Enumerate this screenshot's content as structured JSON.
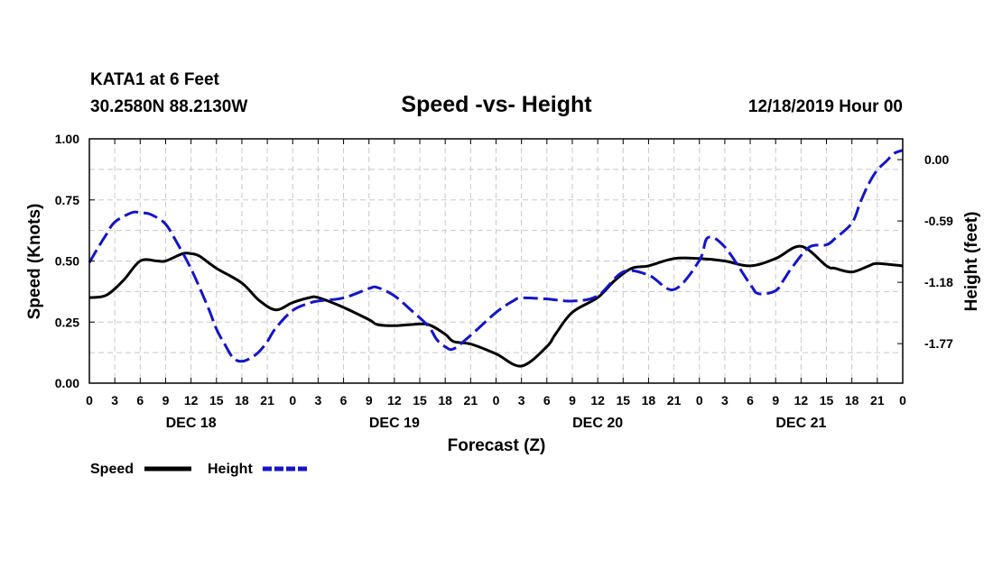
{
  "header": {
    "station": "KATA1 at 6 Feet",
    "coords": "30.2580N 88.2130W",
    "title": "Speed -vs- Height",
    "date": "12/18/2019 Hour 00"
  },
  "chart_data": {
    "type": "line",
    "title": "Speed -vs- Height",
    "xlabel": "Forecast (Z)",
    "ylabel": "Speed (Knots)",
    "y2label": "Height (feet)",
    "x_unit": "forecast hours from 12/18/2019 00Z",
    "xlim": [
      0,
      96
    ],
    "ylim": [
      0,
      1
    ],
    "y2lim": [
      -2.15,
      0.2
    ],
    "x_ticks": [
      0,
      3,
      6,
      9,
      12,
      15,
      18,
      21,
      24,
      27,
      30,
      33,
      36,
      39,
      42,
      45,
      48,
      51,
      54,
      57,
      60,
      63,
      66,
      69,
      72,
      75,
      78,
      81,
      84,
      87,
      90,
      93,
      96
    ],
    "x_tick_labels": [
      "0",
      "3",
      "6",
      "9",
      "12",
      "15",
      "18",
      "21",
      "0",
      "3",
      "6",
      "9",
      "12",
      "15",
      "18",
      "21",
      "0",
      "3",
      "6",
      "9",
      "12",
      "15",
      "18",
      "21",
      "0",
      "3",
      "6",
      "9",
      "12",
      "15",
      "18",
      "21",
      "0"
    ],
    "y_ticks": [
      0,
      0.25,
      0.5,
      0.75,
      1.0
    ],
    "y_tick_labels": [
      "0.00",
      "0.25",
      "0.50",
      "0.75",
      "1.00"
    ],
    "y2_ticks": [
      0,
      -0.59,
      -1.18,
      -1.77
    ],
    "y2_tick_labels": [
      "0.00",
      "-0.59",
      "-1.18",
      "-1.77"
    ],
    "day_labels": [
      {
        "x": 12,
        "label": "DEC 18"
      },
      {
        "x": 36,
        "label": "DEC 19"
      },
      {
        "x": 60,
        "label": "DEC 20"
      },
      {
        "x": 84,
        "label": "DEC 21"
      }
    ],
    "grid": true,
    "series": [
      {
        "name": "Speed",
        "axis": "left",
        "color": "#000000",
        "style": "solid",
        "x": [
          0,
          2,
          4,
          6,
          8,
          9,
          11,
          12,
          13,
          15,
          18,
          20,
          22,
          24,
          26,
          27,
          30,
          33,
          34,
          36,
          38,
          40,
          42,
          43,
          45,
          48,
          51,
          54,
          55,
          57,
          60,
          62,
          64,
          66,
          69,
          72,
          75,
          78,
          81,
          84,
          87,
          88,
          90,
          92,
          93,
          96
        ],
        "values": [
          0.35,
          0.36,
          0.42,
          0.5,
          0.5,
          0.5,
          0.53,
          0.53,
          0.52,
          0.47,
          0.41,
          0.34,
          0.3,
          0.33,
          0.35,
          0.35,
          0.31,
          0.26,
          0.24,
          0.235,
          0.24,
          0.24,
          0.2,
          0.17,
          0.16,
          0.12,
          0.07,
          0.15,
          0.2,
          0.29,
          0.35,
          0.42,
          0.47,
          0.48,
          0.51,
          0.51,
          0.5,
          0.48,
          0.51,
          0.56,
          0.48,
          0.47,
          0.455,
          0.48,
          0.49,
          0.48
        ]
      },
      {
        "name": "Height",
        "axis": "right",
        "color": "#1414c8",
        "style": "dashed",
        "x": [
          0,
          1,
          2,
          3,
          5,
          6,
          7,
          8,
          9,
          10,
          12,
          14,
          15,
          16,
          17,
          18,
          19,
          20,
          21,
          22,
          24,
          26,
          27,
          30,
          33,
          34,
          36,
          38,
          40,
          41,
          42,
          43,
          45,
          48,
          50,
          51,
          54,
          57,
          60,
          63,
          66,
          69,
          72,
          73,
          75,
          78,
          79,
          81,
          82,
          83,
          85,
          87,
          88,
          90,
          91,
          92,
          93,
          94,
          95,
          96
        ],
        "values": [
          -0.99,
          -0.85,
          -0.72,
          -0.6,
          -0.51,
          -0.51,
          -0.52,
          -0.56,
          -0.62,
          -0.75,
          -1.05,
          -1.42,
          -1.63,
          -1.78,
          -1.91,
          -1.94,
          -1.91,
          -1.85,
          -1.75,
          -1.62,
          -1.45,
          -1.38,
          -1.36,
          -1.33,
          -1.24,
          -1.23,
          -1.31,
          -1.45,
          -1.6,
          -1.73,
          -1.8,
          -1.82,
          -1.69,
          -1.47,
          -1.36,
          -1.33,
          -1.34,
          -1.36,
          -1.31,
          -1.08,
          -1.11,
          -1.25,
          -0.97,
          -0.75,
          -0.84,
          -1.2,
          -1.29,
          -1.26,
          -1.15,
          -1.03,
          -0.84,
          -0.82,
          -0.76,
          -0.61,
          -0.41,
          -0.23,
          -0.1,
          -0.02,
          0.06,
          0.09
        ]
      }
    ],
    "legend": {
      "position": "bottom-left",
      "entries": [
        {
          "label": "Speed",
          "color": "#000000",
          "style": "solid"
        },
        {
          "label": "Height",
          "color": "#1414c8",
          "style": "dashed"
        }
      ]
    }
  }
}
